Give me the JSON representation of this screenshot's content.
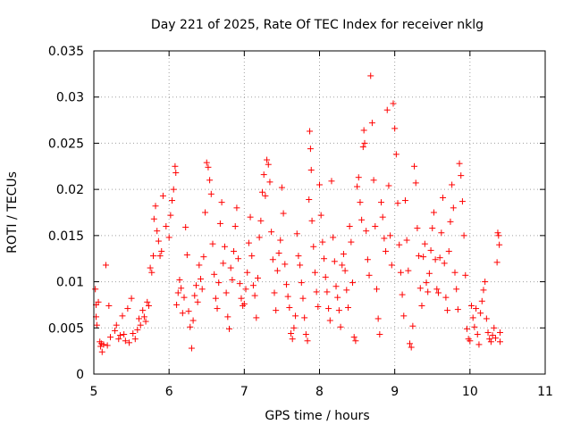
{
  "chart_data": {
    "type": "scatter",
    "title": "Day 221 of 2025, Rate Of TEC Index for receiver nklg",
    "xlabel": "GPS time / hours",
    "ylabel": "ROTI / TECUs",
    "xlim": [
      5,
      11
    ],
    "ylim": [
      0,
      0.035
    ],
    "xticks": [
      "5",
      "6",
      "7",
      "8",
      "9",
      "10",
      "11"
    ],
    "yticks": [
      "0",
      "0.005",
      "0.01",
      "0.015",
      "0.02",
      "0.025",
      "0.03",
      "0.035"
    ],
    "grid": true,
    "marker": "+",
    "series": [
      {
        "color": "#ff0000",
        "points": [
          [
            5.02,
            0.0092
          ],
          [
            5.03,
            0.0075
          ],
          [
            5.03,
            0.0062
          ],
          [
            5.04,
            0.0053
          ],
          [
            5.06,
            0.0078
          ],
          [
            5.08,
            0.0035
          ],
          [
            5.09,
            0.003
          ],
          [
            5.1,
            0.0033
          ],
          [
            5.11,
            0.0024
          ],
          [
            5.13,
            0.0032
          ],
          [
            5.16,
            0.0118
          ],
          [
            5.18,
            0.0031
          ],
          [
            5.2,
            0.0074
          ],
          [
            5.22,
            0.004
          ],
          [
            5.28,
            0.0047
          ],
          [
            5.3,
            0.0053
          ],
          [
            5.33,
            0.0038
          ],
          [
            5.35,
            0.0042
          ],
          [
            5.38,
            0.0063
          ],
          [
            5.4,
            0.0043
          ],
          [
            5.42,
            0.0036
          ],
          [
            5.45,
            0.0071
          ],
          [
            5.47,
            0.0034
          ],
          [
            5.5,
            0.0082
          ],
          [
            5.52,
            0.0044
          ],
          [
            5.55,
            0.0038
          ],
          [
            5.58,
            0.0048
          ],
          [
            5.6,
            0.006
          ],
          [
            5.62,
            0.0053
          ],
          [
            5.65,
            0.0069
          ],
          [
            5.67,
            0.0062
          ],
          [
            5.69,
            0.0057
          ],
          [
            5.71,
            0.0078
          ],
          [
            5.73,
            0.0074
          ],
          [
            5.75,
            0.0115
          ],
          [
            5.77,
            0.011
          ],
          [
            5.79,
            0.0128
          ],
          [
            5.8,
            0.0168
          ],
          [
            5.82,
            0.0182
          ],
          [
            5.84,
            0.0155
          ],
          [
            5.86,
            0.0144
          ],
          [
            5.88,
            0.0128
          ],
          [
            5.9,
            0.0133
          ],
          [
            5.92,
            0.0193
          ],
          [
            5.96,
            0.016
          ],
          [
            6.0,
            0.0148
          ],
          [
            6.02,
            0.0172
          ],
          [
            6.04,
            0.0188
          ],
          [
            6.06,
            0.02
          ],
          [
            6.08,
            0.0225
          ],
          [
            6.09,
            0.0218
          ],
          [
            6.1,
            0.0075
          ],
          [
            6.12,
            0.0088
          ],
          [
            6.14,
            0.0102
          ],
          [
            6.16,
            0.0093
          ],
          [
            6.18,
            0.0066
          ],
          [
            6.2,
            0.0083
          ],
          [
            6.22,
            0.0159
          ],
          [
            6.24,
            0.0129
          ],
          [
            6.26,
            0.0068
          ],
          [
            6.28,
            0.0051
          ],
          [
            6.3,
            0.0028
          ],
          [
            6.32,
            0.0058
          ],
          [
            6.34,
            0.0085
          ],
          [
            6.36,
            0.0096
          ],
          [
            6.38,
            0.0078
          ],
          [
            6.4,
            0.0118
          ],
          [
            6.42,
            0.0103
          ],
          [
            6.44,
            0.0092
          ],
          [
            6.46,
            0.0127
          ],
          [
            6.48,
            0.0175
          ],
          [
            6.5,
            0.0229
          ],
          [
            6.52,
            0.0224
          ],
          [
            6.54,
            0.021
          ],
          [
            6.56,
            0.0195
          ],
          [
            6.58,
            0.0141
          ],
          [
            6.6,
            0.0108
          ],
          [
            6.62,
            0.0082
          ],
          [
            6.64,
            0.0071
          ],
          [
            6.66,
            0.0099
          ],
          [
            6.68,
            0.0163
          ],
          [
            6.7,
            0.0186
          ],
          [
            6.72,
            0.012
          ],
          [
            6.74,
            0.0138
          ],
          [
            6.76,
            0.0088
          ],
          [
            6.78,
            0.0062
          ],
          [
            6.8,
            0.0049
          ],
          [
            6.82,
            0.0115
          ],
          [
            6.84,
            0.0102
          ],
          [
            6.86,
            0.0133
          ],
          [
            6.88,
            0.016
          ],
          [
            6.9,
            0.018
          ],
          [
            6.92,
            0.0125
          ],
          [
            6.94,
            0.0098
          ],
          [
            6.96,
            0.0082
          ],
          [
            6.98,
            0.0074
          ],
          [
            7.0,
            0.0076
          ],
          [
            7.02,
            0.0092
          ],
          [
            7.04,
            0.011
          ],
          [
            7.06,
            0.0142
          ],
          [
            7.08,
            0.017
          ],
          [
            7.1,
            0.0128
          ],
          [
            7.12,
            0.0096
          ],
          [
            7.14,
            0.0085
          ],
          [
            7.16,
            0.0061
          ],
          [
            7.18,
            0.0104
          ],
          [
            7.2,
            0.0148
          ],
          [
            7.22,
            0.0166
          ],
          [
            7.24,
            0.0197
          ],
          [
            7.26,
            0.0216
          ],
          [
            7.28,
            0.0193
          ],
          [
            7.3,
            0.0232
          ],
          [
            7.32,
            0.0227
          ],
          [
            7.34,
            0.0208
          ],
          [
            7.36,
            0.0154
          ],
          [
            7.38,
            0.0124
          ],
          [
            7.4,
            0.0088
          ],
          [
            7.42,
            0.0069
          ],
          [
            7.44,
            0.0112
          ],
          [
            7.46,
            0.0131
          ],
          [
            7.48,
            0.0145
          ],
          [
            7.5,
            0.0202
          ],
          [
            7.52,
            0.0174
          ],
          [
            7.54,
            0.0119
          ],
          [
            7.56,
            0.0097
          ],
          [
            7.58,
            0.0084
          ],
          [
            7.6,
            0.0072
          ],
          [
            7.62,
            0.0044
          ],
          [
            7.64,
            0.0038
          ],
          [
            7.66,
            0.005
          ],
          [
            7.68,
            0.0063
          ],
          [
            7.7,
            0.0152
          ],
          [
            7.72,
            0.0128
          ],
          [
            7.74,
            0.0118
          ],
          [
            7.76,
            0.0099
          ],
          [
            7.78,
            0.0082
          ],
          [
            7.8,
            0.0061
          ],
          [
            7.82,
            0.0043
          ],
          [
            7.84,
            0.0036
          ],
          [
            7.86,
            0.0189
          ],
          [
            7.87,
            0.0263
          ],
          [
            7.88,
            0.0244
          ],
          [
            7.89,
            0.0221
          ],
          [
            7.9,
            0.0166
          ],
          [
            7.92,
            0.0138
          ],
          [
            7.94,
            0.011
          ],
          [
            7.96,
            0.0089
          ],
          [
            7.98,
            0.0073
          ],
          [
            8.0,
            0.0205
          ],
          [
            8.02,
            0.0172
          ],
          [
            8.04,
            0.0143
          ],
          [
            8.06,
            0.0125
          ],
          [
            8.08,
            0.0105
          ],
          [
            8.1,
            0.0089
          ],
          [
            8.12,
            0.0071
          ],
          [
            8.14,
            0.0058
          ],
          [
            8.16,
            0.0209
          ],
          [
            8.18,
            0.0148
          ],
          [
            8.2,
            0.0122
          ],
          [
            8.22,
            0.0095
          ],
          [
            8.24,
            0.0083
          ],
          [
            8.26,
            0.0069
          ],
          [
            8.28,
            0.0051
          ],
          [
            8.3,
            0.0118
          ],
          [
            8.32,
            0.013
          ],
          [
            8.34,
            0.0112
          ],
          [
            8.36,
            0.0091
          ],
          [
            8.38,
            0.0072
          ],
          [
            8.4,
            0.016
          ],
          [
            8.42,
            0.0143
          ],
          [
            8.44,
            0.0099
          ],
          [
            8.46,
            0.004
          ],
          [
            8.48,
            0.0036
          ],
          [
            8.5,
            0.0203
          ],
          [
            8.52,
            0.0213
          ],
          [
            8.54,
            0.0186
          ],
          [
            8.56,
            0.0167
          ],
          [
            8.58,
            0.0246
          ],
          [
            8.59,
            0.0264
          ],
          [
            8.6,
            0.025
          ],
          [
            8.62,
            0.0155
          ],
          [
            8.64,
            0.0124
          ],
          [
            8.66,
            0.0107
          ],
          [
            8.68,
            0.0323
          ],
          [
            8.7,
            0.0272
          ],
          [
            8.72,
            0.021
          ],
          [
            8.74,
            0.016
          ],
          [
            8.76,
            0.0092
          ],
          [
            8.78,
            0.006
          ],
          [
            8.8,
            0.0043
          ],
          [
            8.82,
            0.0186
          ],
          [
            8.84,
            0.017
          ],
          [
            8.86,
            0.0147
          ],
          [
            8.88,
            0.0133
          ],
          [
            8.9,
            0.0286
          ],
          [
            8.92,
            0.0204
          ],
          [
            8.94,
            0.015
          ],
          [
            8.96,
            0.0118
          ],
          [
            8.98,
            0.0293
          ],
          [
            9.0,
            0.0266
          ],
          [
            9.02,
            0.0238
          ],
          [
            9.04,
            0.0185
          ],
          [
            9.06,
            0.014
          ],
          [
            9.08,
            0.011
          ],
          [
            9.1,
            0.0086
          ],
          [
            9.12,
            0.0063
          ],
          [
            9.14,
            0.0188
          ],
          [
            9.16,
            0.0145
          ],
          [
            9.18,
            0.0112
          ],
          [
            9.2,
            0.0033
          ],
          [
            9.22,
            0.0029
          ],
          [
            9.24,
            0.0052
          ],
          [
            9.26,
            0.0225
          ],
          [
            9.28,
            0.0207
          ],
          [
            9.3,
            0.0158
          ],
          [
            9.32,
            0.0128
          ],
          [
            9.34,
            0.0093
          ],
          [
            9.36,
            0.0074
          ],
          [
            9.38,
            0.0127
          ],
          [
            9.4,
            0.0141
          ],
          [
            9.42,
            0.0099
          ],
          [
            9.44,
            0.0089
          ],
          [
            9.46,
            0.0109
          ],
          [
            9.48,
            0.0134
          ],
          [
            9.5,
            0.0158
          ],
          [
            9.52,
            0.0175
          ],
          [
            9.54,
            0.0124
          ],
          [
            9.56,
            0.0092
          ],
          [
            9.58,
            0.0088
          ],
          [
            9.6,
            0.0126
          ],
          [
            9.62,
            0.0153
          ],
          [
            9.64,
            0.0191
          ],
          [
            9.66,
            0.012
          ],
          [
            9.68,
            0.0083
          ],
          [
            9.7,
            0.0069
          ],
          [
            9.72,
            0.0133
          ],
          [
            9.74,
            0.0165
          ],
          [
            9.76,
            0.0205
          ],
          [
            9.78,
            0.018
          ],
          [
            9.8,
            0.011
          ],
          [
            9.82,
            0.0092
          ],
          [
            9.84,
            0.007
          ],
          [
            9.86,
            0.0228
          ],
          [
            9.88,
            0.0215
          ],
          [
            9.9,
            0.0187
          ],
          [
            9.92,
            0.015
          ],
          [
            9.94,
            0.0107
          ],
          [
            9.96,
            0.0049
          ],
          [
            9.98,
            0.0038
          ],
          [
            10.0,
            0.0036
          ],
          [
            10.02,
            0.0074
          ],
          [
            10.04,
            0.0061
          ],
          [
            10.06,
            0.0051
          ],
          [
            10.08,
            0.0071
          ],
          [
            10.1,
            0.0043
          ],
          [
            10.12,
            0.0032
          ],
          [
            10.14,
            0.0066
          ],
          [
            10.16,
            0.0079
          ],
          [
            10.18,
            0.0091
          ],
          [
            10.2,
            0.01
          ],
          [
            10.22,
            0.006
          ],
          [
            10.24,
            0.0045
          ],
          [
            10.26,
            0.0038
          ],
          [
            10.28,
            0.0035
          ],
          [
            10.3,
            0.0042
          ],
          [
            10.32,
            0.005
          ],
          [
            10.34,
            0.0039
          ],
          [
            10.36,
            0.0121
          ],
          [
            10.37,
            0.0153
          ],
          [
            10.38,
            0.015
          ],
          [
            10.39,
            0.014
          ],
          [
            10.4,
            0.0045
          ],
          [
            10.4,
            0.0035
          ]
        ]
      }
    ]
  }
}
